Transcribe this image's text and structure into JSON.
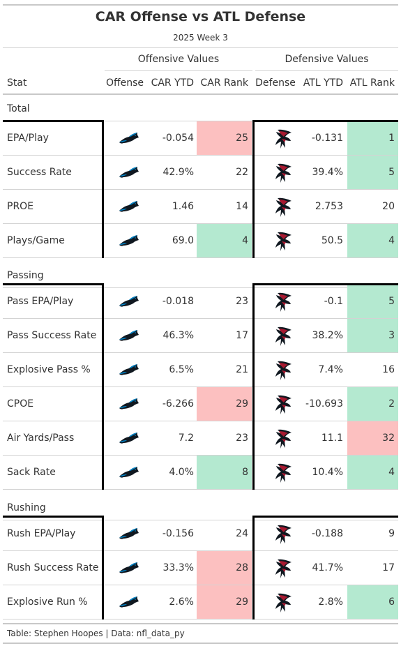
{
  "title": "CAR Offense vs ATL Defense",
  "subtitle": "2025 Week 3",
  "spanners": {
    "offense": "Offensive Values",
    "defense": "Defensive Values"
  },
  "columns": {
    "stat": "Stat",
    "offense": "Offense",
    "car_ytd": "CAR YTD",
    "car_rank": "CAR Rank",
    "defense": "Defense",
    "atl_ytd": "ATL YTD",
    "atl_rank": "ATL Rank"
  },
  "colors": {
    "good": "#b4e9d0",
    "bad": "#fcc0c0",
    "car_logo": "panthers-logo",
    "atl_logo": "falcons-logo"
  },
  "groups": [
    {
      "label": "Total",
      "rows": [
        {
          "stat": "EPA/Play",
          "car_ytd": "-0.054",
          "car_rank": "25",
          "car_rank_color": "bad",
          "atl_ytd": "-0.131",
          "atl_rank": "1",
          "atl_rank_color": "good"
        },
        {
          "stat": "Success Rate",
          "car_ytd": "42.9%",
          "car_rank": "22",
          "car_rank_color": "",
          "atl_ytd": "39.4%",
          "atl_rank": "5",
          "atl_rank_color": "good"
        },
        {
          "stat": "PROE",
          "car_ytd": "1.46",
          "car_rank": "14",
          "car_rank_color": "",
          "atl_ytd": "2.753",
          "atl_rank": "20",
          "atl_rank_color": ""
        },
        {
          "stat": "Plays/Game",
          "car_ytd": "69.0",
          "car_rank": "4",
          "car_rank_color": "good",
          "atl_ytd": "50.5",
          "atl_rank": "4",
          "atl_rank_color": "good"
        }
      ]
    },
    {
      "label": "Passing",
      "rows": [
        {
          "stat": "Pass EPA/Play",
          "car_ytd": "-0.018",
          "car_rank": "23",
          "car_rank_color": "",
          "atl_ytd": "-0.1",
          "atl_rank": "5",
          "atl_rank_color": "good"
        },
        {
          "stat": "Pass Success Rate",
          "car_ytd": "46.3%",
          "car_rank": "17",
          "car_rank_color": "",
          "atl_ytd": "38.2%",
          "atl_rank": "3",
          "atl_rank_color": "good"
        },
        {
          "stat": "Explosive Pass %",
          "car_ytd": "6.5%",
          "car_rank": "21",
          "car_rank_color": "",
          "atl_ytd": "7.4%",
          "atl_rank": "16",
          "atl_rank_color": ""
        },
        {
          "stat": "CPOE",
          "car_ytd": "-6.266",
          "car_rank": "29",
          "car_rank_color": "bad",
          "atl_ytd": "-10.693",
          "atl_rank": "2",
          "atl_rank_color": "good"
        },
        {
          "stat": "Air Yards/Pass",
          "car_ytd": "7.2",
          "car_rank": "23",
          "car_rank_color": "",
          "atl_ytd": "11.1",
          "atl_rank": "32",
          "atl_rank_color": "bad"
        },
        {
          "stat": "Sack Rate",
          "car_ytd": "4.0%",
          "car_rank": "8",
          "car_rank_color": "good",
          "atl_ytd": "10.4%",
          "atl_rank": "4",
          "atl_rank_color": "good"
        }
      ]
    },
    {
      "label": "Rushing",
      "rows": [
        {
          "stat": "Rush EPA/Play",
          "car_ytd": "-0.156",
          "car_rank": "24",
          "car_rank_color": "",
          "atl_ytd": "-0.188",
          "atl_rank": "9",
          "atl_rank_color": ""
        },
        {
          "stat": "Rush Success Rate",
          "car_ytd": "33.3%",
          "car_rank": "28",
          "car_rank_color": "bad",
          "atl_ytd": "41.7%",
          "atl_rank": "17",
          "atl_rank_color": ""
        },
        {
          "stat": "Explosive Run %",
          "car_ytd": "2.6%",
          "car_rank": "29",
          "car_rank_color": "bad",
          "atl_ytd": "2.8%",
          "atl_rank": "6",
          "atl_rank_color": "good"
        }
      ]
    }
  ],
  "footer": "Table: Stephen Hoopes | Data: nfl_data_py"
}
